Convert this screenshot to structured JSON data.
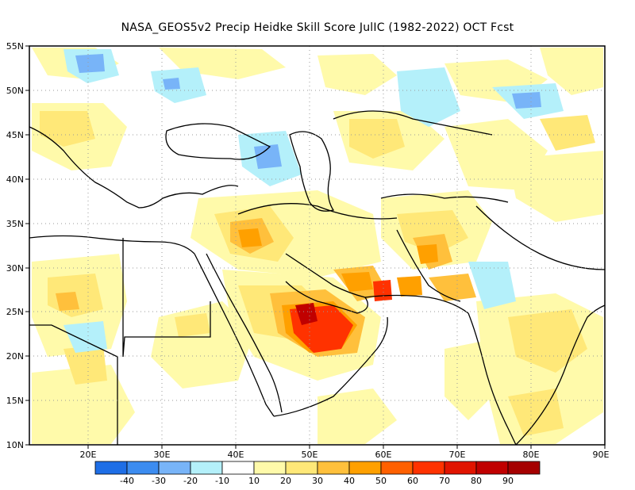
{
  "title": "NASA_GEOS5v2 Precip Heidke Skill Score JulIC (1982-2022) OCT Fcst",
  "lat_labels": [
    "55N",
    "50N",
    "45N",
    "40N",
    "35N",
    "30N",
    "25N",
    "20N",
    "15N",
    "10N"
  ],
  "lon_labels": [
    "20E",
    "30E",
    "40E",
    "50E",
    "60E",
    "70E",
    "80E",
    "90E"
  ],
  "colorbar": {
    "tick_labels": [
      "-40",
      "-30",
      "-20",
      "-10",
      "10",
      "20",
      "30",
      "40",
      "50",
      "60",
      "70",
      "80",
      "90"
    ],
    "colors": [
      "#1e6ee6",
      "#3c8cf0",
      "#78b4f8",
      "#b4f0fa",
      "#ffffff",
      "#fffaaa",
      "#ffe878",
      "#ffc03c",
      "#ffa000",
      "#ff6000",
      "#ff3200",
      "#e11400",
      "#c00000",
      "#a50000"
    ]
  }
}
